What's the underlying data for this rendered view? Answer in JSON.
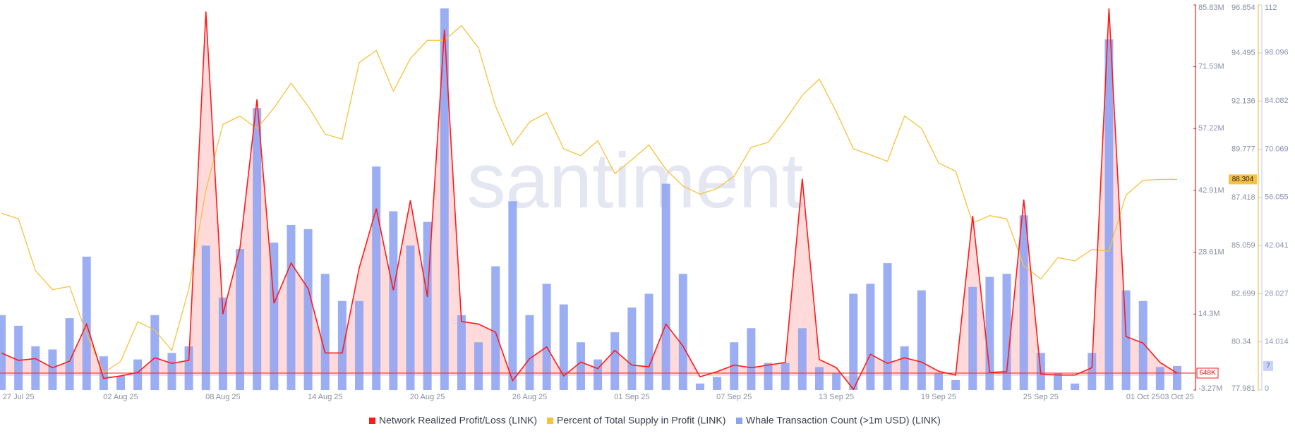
{
  "chart_data": {
    "type": "combo",
    "watermark": "santiment",
    "categories": [
      null,
      "27 Jul 25",
      null,
      null,
      null,
      null,
      null,
      "02 Aug 25",
      null,
      null,
      null,
      null,
      null,
      "08 Aug 25",
      null,
      null,
      null,
      null,
      null,
      "14 Aug 25",
      null,
      null,
      null,
      null,
      null,
      "20 Aug 25",
      null,
      null,
      null,
      null,
      null,
      "26 Aug 25",
      null,
      null,
      null,
      null,
      null,
      "01 Sep 25",
      null,
      null,
      null,
      null,
      null,
      "07 Sep 25",
      null,
      null,
      null,
      null,
      null,
      "13 Sep 25",
      null,
      null,
      null,
      null,
      null,
      "19 Sep 25",
      null,
      null,
      null,
      null,
      null,
      "25 Sep 25",
      null,
      null,
      null,
      null,
      null,
      "01 Oct 25",
      null,
      "03 Oct 25"
    ],
    "series": [
      {
        "name": "Network Realized Profit/Loss (LINK)",
        "color": "#ff1a1a",
        "axis": "y",
        "kind": "area-line",
        "last_value_label": "648K",
        "values": [
          5300000,
          3600000,
          4000000,
          1900000,
          3400000,
          12000000,
          -600000,
          0,
          800000,
          4200000,
          2900000,
          3600000,
          84300000,
          14300000,
          29600000,
          64000000,
          16800000,
          26100000,
          20200000,
          5300000,
          5300000,
          25000000,
          38700000,
          19800000,
          40600000,
          18300000,
          80100000,
          12600000,
          12000000,
          10100000,
          -1100000,
          4000000,
          6700000,
          0,
          3200000,
          1700000,
          5900000,
          2500000,
          2100000,
          12000000,
          6900000,
          -200000,
          1000000,
          2500000,
          1900000,
          2500000,
          3100000,
          45600000,
          3800000,
          1900000,
          -3100000,
          5000000,
          2900000,
          4200000,
          3200000,
          1100000,
          200000,
          37000000,
          800000,
          1000000,
          40800000,
          400000,
          200000,
          200000,
          1900000,
          85000000,
          9100000,
          7600000,
          3100000,
          648000
        ]
      },
      {
        "name": "Percent of Total Supply in Profit (LINK)",
        "color": "#f7c23c",
        "axis": "y2",
        "kind": "line",
        "values": [
          86.65,
          86.37,
          83.83,
          82.9,
          83.06,
          80.72,
          78.83,
          79.39,
          81.33,
          80.92,
          79.92,
          82.94,
          87.78,
          91.0,
          91.41,
          90.8,
          91.81,
          93.02,
          91.89,
          90.52,
          90.28,
          94.03,
          94.63,
          92.62,
          94.23,
          95.12,
          95.12,
          95.84,
          94.75,
          91.89,
          89.99,
          91.12,
          91.57,
          89.8,
          89.47,
          90.2,
          88.59,
          89.27,
          89.99,
          88.79,
          87.98,
          87.58,
          87.86,
          88.46,
          89.88,
          90.12,
          91.21,
          92.42,
          93.22,
          91.61,
          89.8,
          89.51,
          89.19,
          91.41,
          90.8,
          89.11,
          88.71,
          86.17,
          86.53,
          86.37,
          84.07,
          83.42,
          84.47,
          84.31,
          84.87,
          84.79,
          87.54,
          88.26,
          88.3,
          88.304
        ]
      },
      {
        "name": "Whale Transaction Count (>1m USD) (LINK)",
        "color": "#8da3f3",
        "axis": "y3",
        "kind": "bar",
        "values": [
          21.8,
          18.7,
          12.7,
          11.8,
          20.9,
          38.8,
          9.8,
          4.1,
          8.9,
          21.8,
          10.8,
          12.7,
          42,
          26.9,
          41,
          82,
          42.9,
          48,
          46.8,
          33.8,
          25.9,
          25.9,
          65,
          52,
          42,
          48.9,
          111,
          21.8,
          13.9,
          36,
          54.9,
          21.8,
          30.9,
          24.9,
          13.9,
          8.9,
          16.8,
          24,
          28,
          60,
          33.8,
          1.9,
          3.8,
          13.9,
          18,
          7.9,
          7.9,
          18,
          6.7,
          4.8,
          28,
          30.9,
          36.9,
          12.7,
          29,
          4.8,
          2.9,
          30,
          32.9,
          33.8,
          50.8,
          10.8,
          4.8,
          1.9,
          10.8,
          102,
          29,
          25.9,
          6.7,
          7
        ]
      }
    ],
    "ylim": [
      -3270000,
      85830000
    ],
    "yticks": [
      {
        "value": -3270000,
        "label": "-3.27M"
      },
      {
        "value": 14300000,
        "label": "14.3M"
      },
      {
        "value": 28610000,
        "label": "28.61M"
      },
      {
        "value": 42910000,
        "label": "42.91M"
      },
      {
        "value": 57220000,
        "label": "57.22M"
      },
      {
        "value": 71530000,
        "label": "71.53M"
      },
      {
        "value": 85830000,
        "label": "85.83M"
      }
    ],
    "y2lim": [
      77.981,
      96.854
    ],
    "y2ticks": [
      77.981,
      80.34,
      82.699,
      85.059,
      87.418,
      89.777,
      92.136,
      94.495,
      96.854
    ],
    "y3lim": [
      0,
      112
    ],
    "y3ticks": [
      0,
      14.014,
      28.027,
      42.041,
      56.055,
      70.069,
      84.082,
      98.096,
      112
    ]
  }
}
